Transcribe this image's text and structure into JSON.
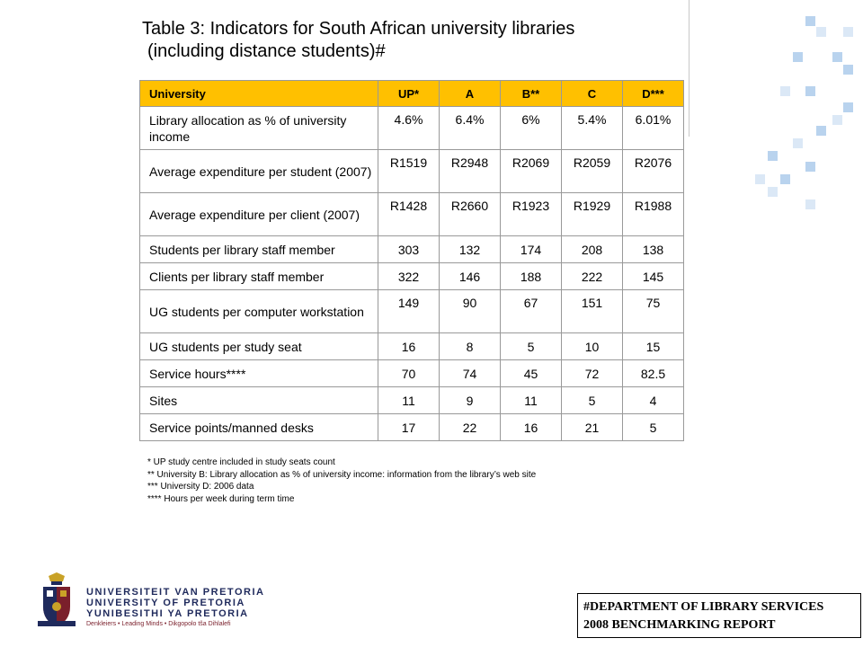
{
  "title": {
    "line1": "Table 3: Indicators for South African university libraries",
    "line2": "(including distance students)#"
  },
  "table": {
    "headers": [
      "University",
      "UP*",
      "A",
      "B**",
      "C",
      "D***"
    ],
    "rows": [
      {
        "label": "Library allocation as % of university income",
        "values": [
          "4.6%",
          "6.4%",
          "6%",
          "5.4%",
          "6.01%"
        ]
      },
      {
        "label": "Average expenditure per student (2007)",
        "values": [
          "R1519",
          "R2948",
          "R2069",
          "R2059",
          "R2076"
        ]
      },
      {
        "label": "Average expenditure per client (2007)",
        "values": [
          "R1428",
          "R2660",
          "R1923",
          "R1929",
          "R1988"
        ]
      },
      {
        "label": "Students per library staff member",
        "values": [
          "303",
          "132",
          "174",
          "208",
          "138"
        ]
      },
      {
        "label": "Clients per library staff member",
        "values": [
          "322",
          "146",
          "188",
          "222",
          "145"
        ]
      },
      {
        "label": "UG students per computer workstation",
        "values": [
          "149",
          "90",
          "67",
          "151",
          "75"
        ]
      },
      {
        "label": "UG students per study seat",
        "values": [
          "16",
          "8",
          "5",
          "10",
          "15"
        ]
      },
      {
        "label": "Service hours****",
        "values": [
          "70",
          "74",
          "45",
          "72",
          "82.5"
        ]
      },
      {
        "label": "Sites",
        "values": [
          "11",
          "9",
          "11",
          "5",
          "4"
        ]
      },
      {
        "label": "Service points/manned desks",
        "values": [
          "17",
          "22",
          "16",
          "21",
          "5"
        ]
      }
    ]
  },
  "notes": [
    "* UP study centre included in study seats count",
    "** University B: Library allocation as % of university income: information from the library’s web site",
    "*** University D:  2006 data",
    "**** Hours per week during term time"
  ],
  "logo": {
    "line1": "UNIVERSITEIT VAN PRETORIA",
    "line2": "UNIVERSITY OF PRETORIA",
    "line3": "YUNIBESITHI YA PRETORIA",
    "tagline": "Denkleiers • Leading Minds • Dikgopolo tša Dihlalefi",
    "icon": "university-crest"
  },
  "footer_box": {
    "line1": "#DEPARTMENT OF LIBRARY SERVICES",
    "line2": "2008 BENCHMARKING REPORT"
  },
  "colors": {
    "header_fill": "#ffc000",
    "decor_light_blue": "#b9d3ee",
    "decor_pale_blue": "#dbe8f6",
    "logo_navy": "#1f2a5c",
    "logo_maroon": "#7a1f2b"
  }
}
